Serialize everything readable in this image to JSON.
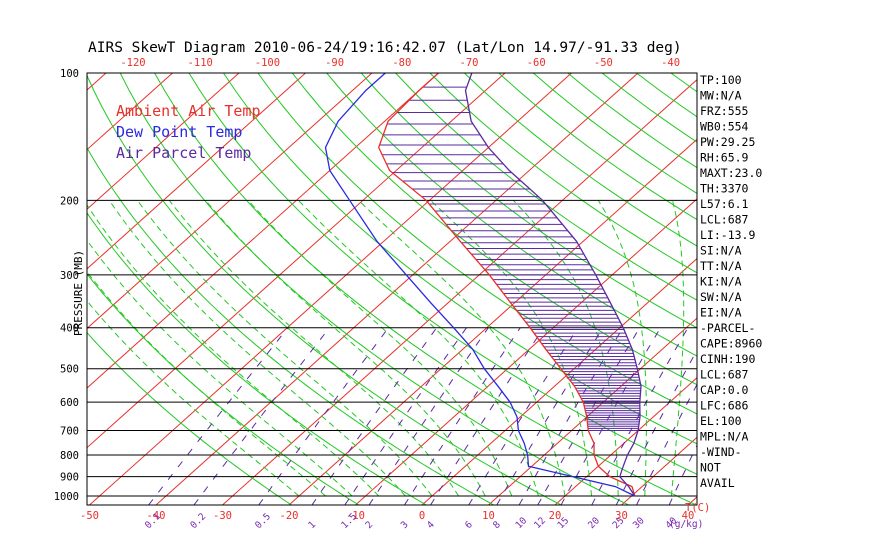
{
  "chart_data": {
    "type": "line",
    "title": "AIRS SkewT Diagram 2010-06-24/19:16:42.07 (Lat/Lon 14.97/-91.33 deg)",
    "ylabel": "PRESSURE (MB)",
    "xlabel": "T(C)",
    "mixing_ratio_unit": "(g/kg)",
    "y_axis": {
      "scale": "log",
      "ylim": [
        1050,
        100
      ],
      "ticks": [
        "100",
        "200",
        "300",
        "400",
        "500",
        "600",
        "700",
        "800",
        "900",
        "1000"
      ]
    },
    "x_axis": {
      "xlim": [
        -55,
        40
      ],
      "bottom_ticks": [
        "-50",
        "-40",
        "-30",
        "-20",
        "-10",
        "0",
        "10",
        "20",
        "30",
        "40"
      ],
      "top_ticks": [
        "-120",
        "-110",
        "-100",
        "-90",
        "-80",
        "-70",
        "-60",
        "-50",
        "-40"
      ]
    },
    "mixing_ratio_labels": [
      "0.1",
      "0.2",
      "0.5",
      "1",
      "1.5",
      "2",
      "3",
      "4",
      "6",
      "8",
      "10",
      "12",
      "15",
      "20",
      "25",
      "30",
      "40"
    ],
    "legend": {
      "placement": "top-left",
      "entries": [
        {
          "label": "Ambient Air Temp",
          "color": "#e8302a"
        },
        {
          "label": "Dew Point Temp",
          "color": "#2a2ae0"
        },
        {
          "label": "Air Parcel Temp",
          "color": "#5a2aa0"
        }
      ]
    },
    "series": [
      {
        "name": "Ambient Air Temp",
        "color": "#e8302a",
        "points": [
          [
            1000,
            30.5
          ],
          [
            950,
            28.5
          ],
          [
            900,
            23.5
          ],
          [
            850,
            20.0
          ],
          [
            800,
            17.5
          ],
          [
            750,
            15.5
          ],
          [
            700,
            12.5
          ],
          [
            650,
            10.0
          ],
          [
            600,
            7.0
          ],
          [
            550,
            3.0
          ],
          [
            500,
            -2.0
          ],
          [
            450,
            -7.5
          ],
          [
            400,
            -13.5
          ],
          [
            350,
            -20.5
          ],
          [
            300,
            -28.5
          ],
          [
            250,
            -38.5
          ],
          [
            200,
            -50.5
          ],
          [
            170,
            -61.0
          ],
          [
            150,
            -66.5
          ],
          [
            130,
            -69.5
          ],
          [
            110,
            -70.0
          ],
          [
            100,
            -70.0
          ]
        ]
      },
      {
        "name": "Dew Point Temp",
        "color": "#2a2ae0",
        "points": [
          [
            1000,
            30.5
          ],
          [
            950,
            26.0
          ],
          [
            900,
            18.0
          ],
          [
            850,
            9.5
          ],
          [
            800,
            7.5
          ],
          [
            750,
            5.0
          ],
          [
            700,
            2.0
          ],
          [
            650,
            -0.5
          ],
          [
            600,
            -4.0
          ],
          [
            550,
            -8.5
          ],
          [
            500,
            -13.5
          ],
          [
            450,
            -18.5
          ],
          [
            400,
            -25.0
          ],
          [
            350,
            -32.5
          ],
          [
            300,
            -41.0
          ],
          [
            250,
            -51.0
          ],
          [
            200,
            -62.0
          ],
          [
            170,
            -70.0
          ],
          [
            150,
            -74.5
          ],
          [
            130,
            -77.0
          ],
          [
            110,
            -78.0
          ],
          [
            100,
            -78.0
          ]
        ]
      },
      {
        "name": "Air Parcel Temp",
        "color": "#5a2aa0",
        "points": [
          [
            1000,
            30.5
          ],
          [
            950,
            28.0
          ],
          [
            900,
            25.0
          ],
          [
            860,
            24.0
          ],
          [
            800,
            22.5
          ],
          [
            750,
            21.5
          ],
          [
            700,
            20.0
          ],
          [
            650,
            18.0
          ],
          [
            600,
            15.5
          ],
          [
            550,
            13.0
          ],
          [
            500,
            9.5
          ],
          [
            450,
            5.5
          ],
          [
            400,
            0.5
          ],
          [
            350,
            -5.5
          ],
          [
            300,
            -12.5
          ],
          [
            250,
            -21.0
          ],
          [
            200,
            -33.0
          ],
          [
            170,
            -43.0
          ],
          [
            150,
            -50.0
          ],
          [
            130,
            -57.0
          ],
          [
            110,
            -63.0
          ],
          [
            100,
            -65.0
          ]
        ]
      }
    ],
    "indices": [
      "TP:100",
      "MW:N/A",
      "FRZ:555",
      "WB0:554",
      "PW:29.25",
      "RH:65.9",
      "MAXT:23.0",
      "TH:3370",
      "L57:6.1",
      "LCL:687",
      "LI:-13.9",
      "SI:N/A",
      "TT:N/A",
      "KI:N/A",
      "SW:N/A",
      "EI:N/A",
      "-PARCEL-",
      "CAPE:8960",
      "CINH:190",
      "LCL:687",
      "CAP:0.0",
      "LFC:686",
      "EL:100",
      "MPL:N/A",
      "-WIND-",
      "NOT",
      "AVAIL"
    ],
    "colors": {
      "isotherm": "#e8302a",
      "dry_adiabat": "#22c822",
      "moist_adiabat": "#22c822",
      "mixing_ratio": "#5a2aa0",
      "isobar": "#000000",
      "cape_hatch": "#5a2aa0",
      "axis_labels": "#e8302a",
      "ratio_labels": "#7a2ab0"
    }
  }
}
